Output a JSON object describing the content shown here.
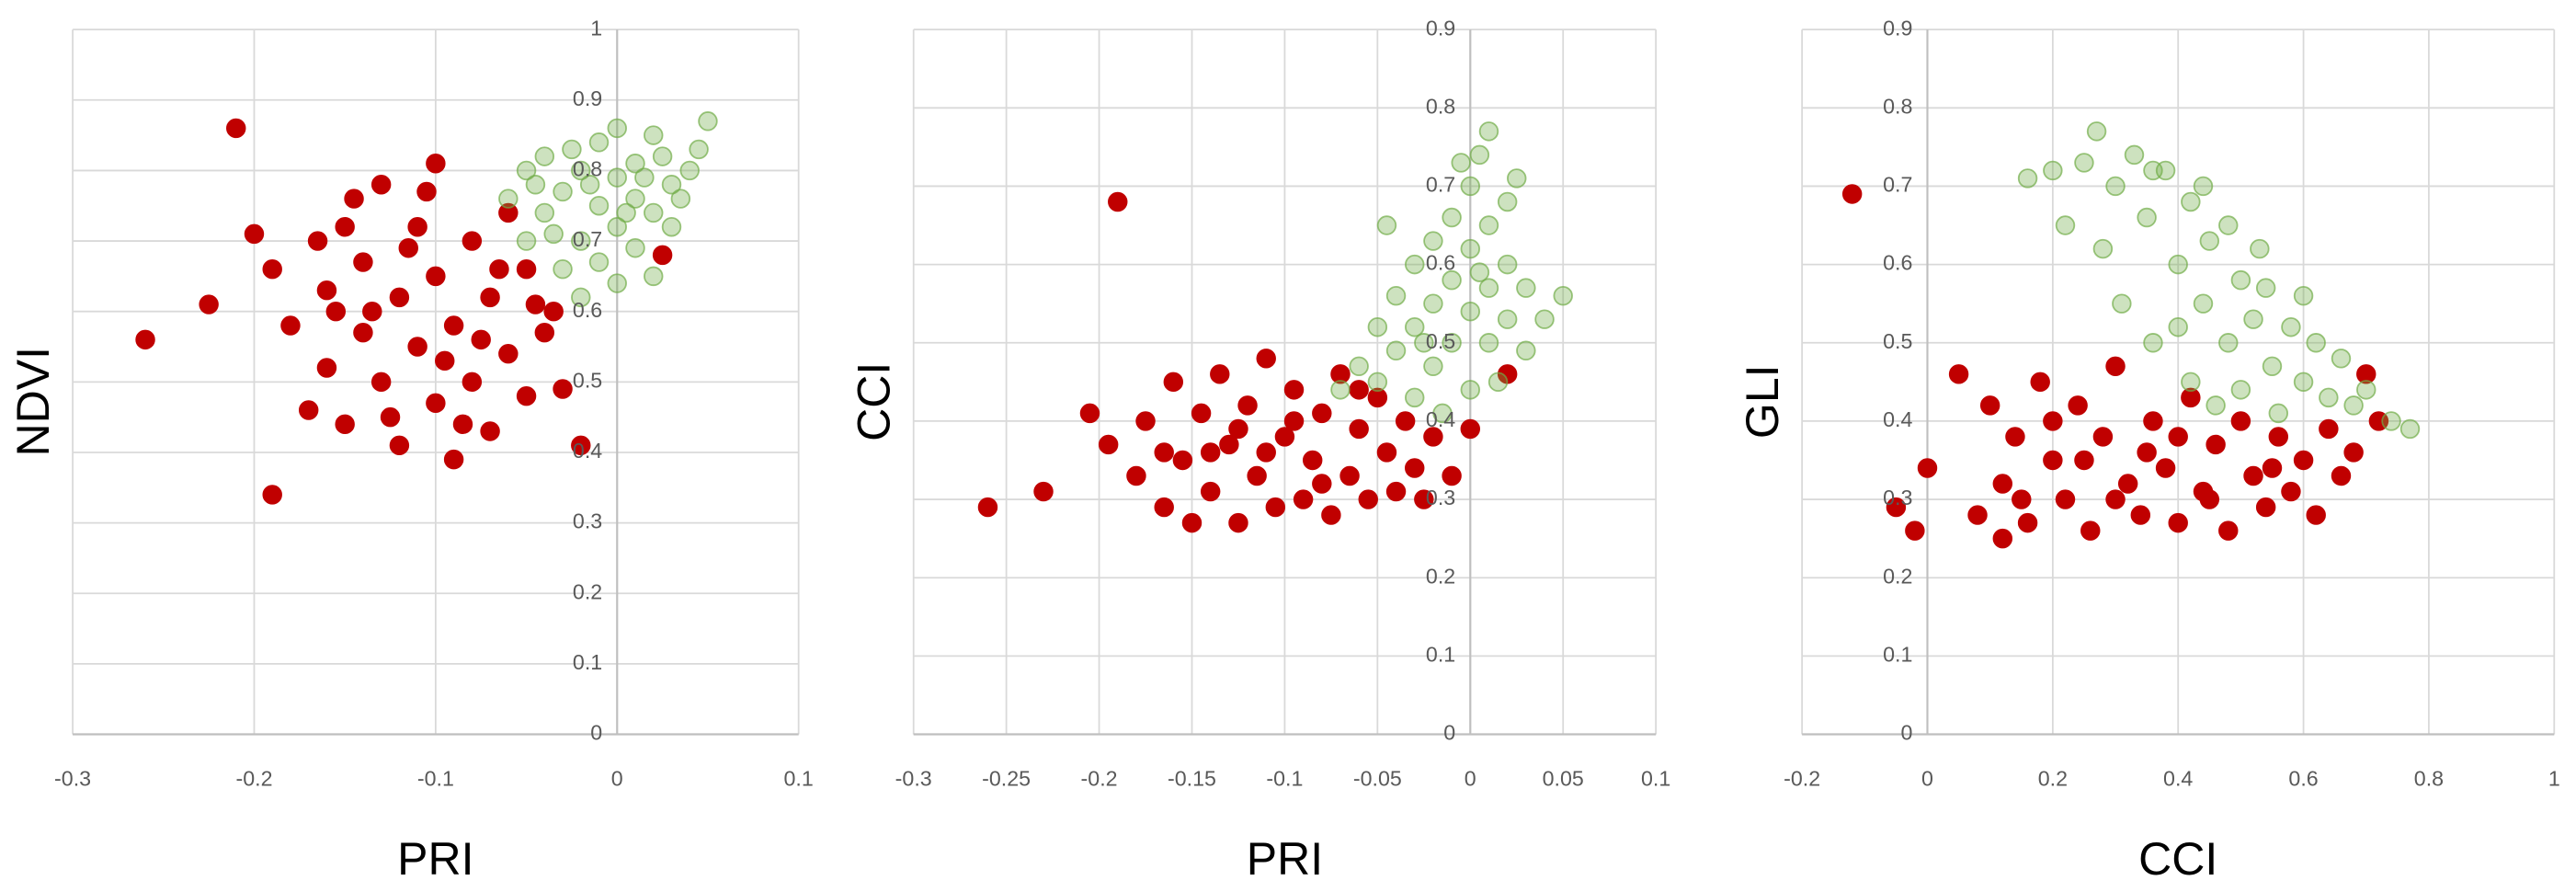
{
  "chart_data": [
    {
      "type": "scatter",
      "x_label": "PRI",
      "y_label": "NDVI",
      "xlim": [
        -0.3,
        0.1
      ],
      "ylim": [
        0,
        1
      ],
      "xticks": [
        -0.3,
        -0.2,
        -0.1,
        0,
        0.1
      ],
      "yticks": [
        0,
        0.1,
        0.2,
        0.3,
        0.4,
        0.5,
        0.6,
        0.7,
        0.8,
        0.9,
        1
      ],
      "grid": true,
      "series": [
        {
          "color": "#c00000",
          "opacity": 1,
          "x": [
            -0.26,
            -0.21,
            -0.225,
            -0.19,
            -0.2,
            -0.19,
            -0.18,
            -0.17,
            -0.16,
            -0.16,
            -0.15,
            -0.15,
            -0.14,
            -0.14,
            -0.13,
            -0.13,
            -0.12,
            -0.12,
            -0.11,
            -0.11,
            -0.1,
            -0.1,
            -0.1,
            -0.09,
            -0.09,
            -0.08,
            -0.08,
            -0.07,
            -0.07,
            -0.06,
            -0.06,
            -0.05,
            -0.05,
            -0.04,
            -0.03,
            -0.02,
            0.025,
            -0.135,
            -0.115,
            -0.095,
            -0.085,
            -0.125,
            -0.145,
            -0.105,
            -0.075,
            -0.065,
            -0.155,
            -0.165,
            -0.045,
            -0.035
          ],
          "y": [
            0.56,
            0.86,
            0.61,
            0.34,
            0.71,
            0.66,
            0.58,
            0.46,
            0.52,
            0.63,
            0.72,
            0.44,
            0.57,
            0.67,
            0.5,
            0.78,
            0.62,
            0.41,
            0.55,
            0.72,
            0.47,
            0.65,
            0.81,
            0.39,
            0.58,
            0.7,
            0.5,
            0.62,
            0.43,
            0.54,
            0.74,
            0.48,
            0.66,
            0.57,
            0.49,
            0.41,
            0.68,
            0.6,
            0.69,
            0.53,
            0.44,
            0.45,
            0.76,
            0.77,
            0.56,
            0.66,
            0.6,
            0.7,
            0.61,
            0.6
          ]
        },
        {
          "color": "#70ad47",
          "opacity": 0.35,
          "x": [
            -0.06,
            -0.05,
            -0.05,
            -0.04,
            -0.04,
            -0.03,
            -0.03,
            -0.02,
            -0.02,
            -0.02,
            -0.01,
            -0.01,
            -0.01,
            0,
            0,
            0,
            0,
            0.01,
            0.01,
            0.01,
            0.02,
            0.02,
            0.02,
            0.03,
            0.03,
            0.04,
            0.05,
            0.045,
            -0.035,
            -0.015,
            0.005,
            0.015,
            -0.025,
            0.035,
            -0.045,
            0.025
          ],
          "y": [
            0.76,
            0.8,
            0.7,
            0.74,
            0.82,
            0.66,
            0.77,
            0.7,
            0.8,
            0.62,
            0.75,
            0.84,
            0.67,
            0.72,
            0.79,
            0.86,
            0.64,
            0.76,
            0.81,
            0.69,
            0.74,
            0.85,
            0.65,
            0.78,
            0.72,
            0.8,
            0.87,
            0.83,
            0.71,
            0.78,
            0.74,
            0.79,
            0.83,
            0.76,
            0.78,
            0.82
          ]
        }
      ]
    },
    {
      "type": "scatter",
      "x_label": "PRI",
      "y_label": "CCI",
      "xlim": [
        -0.3,
        0.1
      ],
      "ylim": [
        0,
        0.9
      ],
      "xticks": [
        -0.3,
        -0.25,
        -0.2,
        -0.15,
        -0.1,
        -0.05,
        0,
        0.05,
        0.1
      ],
      "yticks": [
        0,
        0.1,
        0.2,
        0.3,
        0.4,
        0.5,
        0.6,
        0.7,
        0.8,
        0.9
      ],
      "grid": true,
      "series": [
        {
          "color": "#c00000",
          "opacity": 1,
          "x": [
            -0.26,
            -0.19,
            -0.23,
            -0.205,
            -0.195,
            -0.18,
            -0.175,
            -0.165,
            -0.16,
            -0.155,
            -0.15,
            -0.145,
            -0.14,
            -0.135,
            -0.13,
            -0.125,
            -0.12,
            -0.115,
            -0.11,
            -0.105,
            -0.1,
            -0.095,
            -0.09,
            -0.085,
            -0.08,
            -0.075,
            -0.07,
            -0.065,
            -0.06,
            -0.055,
            -0.05,
            -0.045,
            -0.04,
            -0.035,
            -0.03,
            -0.025,
            -0.02,
            -0.01,
            0.02,
            0,
            -0.14,
            -0.11,
            -0.08,
            -0.125,
            -0.095,
            -0.06,
            -0.165
          ],
          "y": [
            0.29,
            0.68,
            0.31,
            0.41,
            0.37,
            0.33,
            0.4,
            0.29,
            0.45,
            0.35,
            0.27,
            0.41,
            0.31,
            0.46,
            0.37,
            0.27,
            0.42,
            0.33,
            0.48,
            0.29,
            0.38,
            0.44,
            0.3,
            0.35,
            0.41,
            0.28,
            0.46,
            0.33,
            0.39,
            0.3,
            0.43,
            0.36,
            0.31,
            0.4,
            0.34,
            0.3,
            0.38,
            0.33,
            0.46,
            0.39,
            0.36,
            0.36,
            0.32,
            0.39,
            0.4,
            0.44,
            0.36
          ]
        },
        {
          "color": "#70ad47",
          "opacity": 0.35,
          "x": [
            -0.07,
            -0.06,
            -0.05,
            -0.05,
            -0.04,
            -0.04,
            -0.03,
            -0.03,
            -0.03,
            -0.02,
            -0.02,
            -0.02,
            -0.01,
            -0.01,
            -0.01,
            0,
            0,
            0,
            0,
            0.005,
            0.01,
            0.01,
            0.01,
            0.01,
            0.02,
            0.02,
            0.02,
            0.03,
            0.03,
            0.04,
            0.05,
            -0.045,
            -0.015,
            0.015,
            0.025,
            -0.005,
            -0.025,
            0.005
          ],
          "y": [
            0.44,
            0.47,
            0.45,
            0.52,
            0.49,
            0.56,
            0.43,
            0.52,
            0.6,
            0.47,
            0.55,
            0.63,
            0.5,
            0.58,
            0.66,
            0.44,
            0.54,
            0.62,
            0.7,
            0.74,
            0.5,
            0.57,
            0.65,
            0.77,
            0.53,
            0.6,
            0.68,
            0.49,
            0.57,
            0.53,
            0.56,
            0.65,
            0.41,
            0.45,
            0.71,
            0.73,
            0.5,
            0.59
          ]
        }
      ]
    },
    {
      "type": "scatter",
      "x_label": "CCI",
      "y_label": "GLI",
      "xlim": [
        -0.2,
        1
      ],
      "ylim": [
        0,
        0.9
      ],
      "xticks": [
        -0.2,
        0,
        0.2,
        0.4,
        0.6,
        0.8,
        1
      ],
      "yticks": [
        0,
        0.1,
        0.2,
        0.3,
        0.4,
        0.5,
        0.6,
        0.7,
        0.8,
        0.9
      ],
      "grid": true,
      "series": [
        {
          "color": "#c00000",
          "opacity": 1,
          "x": [
            -0.12,
            -0.05,
            -0.02,
            0,
            0.05,
            0.08,
            0.1,
            0.12,
            0.14,
            0.16,
            0.18,
            0.2,
            0.22,
            0.24,
            0.26,
            0.28,
            0.3,
            0.32,
            0.34,
            0.36,
            0.38,
            0.4,
            0.42,
            0.44,
            0.46,
            0.48,
            0.5,
            0.52,
            0.54,
            0.56,
            0.58,
            0.6,
            0.62,
            0.64,
            0.66,
            0.68,
            0.7,
            0.72,
            0.15,
            0.25,
            0.35,
            0.45,
            0.55,
            0.3,
            0.4,
            0.2,
            0.12
          ],
          "y": [
            0.69,
            0.29,
            0.26,
            0.34,
            0.46,
            0.28,
            0.42,
            0.32,
            0.38,
            0.27,
            0.45,
            0.35,
            0.3,
            0.42,
            0.26,
            0.38,
            0.47,
            0.32,
            0.28,
            0.4,
            0.34,
            0.27,
            0.43,
            0.31,
            0.37,
            0.26,
            0.4,
            0.33,
            0.29,
            0.38,
            0.31,
            0.35,
            0.28,
            0.39,
            0.33,
            0.36,
            0.46,
            0.4,
            0.3,
            0.35,
            0.36,
            0.3,
            0.34,
            0.3,
            0.38,
            0.4,
            0.25
          ]
        },
        {
          "color": "#70ad47",
          "opacity": 0.35,
          "x": [
            0.16,
            0.2,
            0.22,
            0.25,
            0.27,
            0.28,
            0.3,
            0.31,
            0.33,
            0.35,
            0.36,
            0.38,
            0.4,
            0.42,
            0.42,
            0.44,
            0.45,
            0.46,
            0.48,
            0.5,
            0.5,
            0.52,
            0.53,
            0.55,
            0.56,
            0.58,
            0.6,
            0.62,
            0.64,
            0.66,
            0.68,
            0.7,
            0.74,
            0.77,
            0.36,
            0.44,
            0.48,
            0.54,
            0.6,
            0.4
          ],
          "y": [
            0.71,
            0.72,
            0.65,
            0.73,
            0.77,
            0.62,
            0.7,
            0.55,
            0.74,
            0.66,
            0.5,
            0.72,
            0.6,
            0.68,
            0.45,
            0.55,
            0.63,
            0.42,
            0.5,
            0.58,
            0.44,
            0.53,
            0.62,
            0.47,
            0.41,
            0.52,
            0.45,
            0.5,
            0.43,
            0.48,
            0.42,
            0.44,
            0.4,
            0.39,
            0.72,
            0.7,
            0.65,
            0.57,
            0.56,
            0.52
          ]
        }
      ]
    }
  ]
}
